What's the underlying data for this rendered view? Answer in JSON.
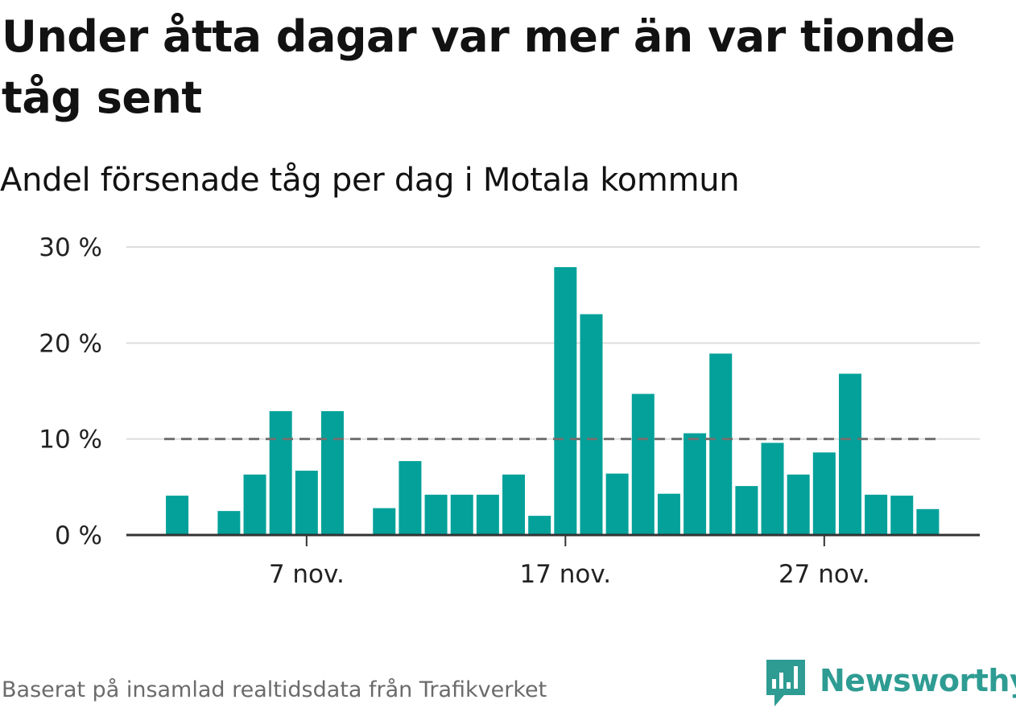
{
  "header": {
    "title": "Under åtta dagar var mer än var tionde tåg sent",
    "subtitle": "Andel försenade tåg per dag i Motala kommun"
  },
  "footer": {
    "source": "Baserat på insamlad realtidsdata från Trafikverket",
    "logo_text": "Newsworthy"
  },
  "colors": {
    "bar": "#03a19a",
    "reference_line": "#707070",
    "grid": "#dddddd",
    "axis": "#333333",
    "logo": "#2e9c93"
  },
  "chart_data": {
    "type": "bar",
    "x": [
      "2 nov.",
      "3 nov.",
      "4 nov.",
      "5 nov.",
      "6 nov.",
      "7 nov.",
      "8 nov.",
      "9 nov.",
      "10 nov.",
      "11 nov.",
      "12 nov.",
      "13 nov.",
      "14 nov.",
      "15 nov.",
      "16 nov.",
      "17 nov.",
      "18 nov.",
      "19 nov.",
      "20 nov.",
      "21 nov.",
      "22 nov.",
      "23 nov.",
      "24 nov.",
      "25 nov.",
      "26 nov.",
      "27 nov.",
      "28 nov.",
      "29 nov.",
      "30 nov.",
      "1 dec."
    ],
    "values": [
      4.1,
      null,
      2.5,
      6.3,
      12.9,
      6.7,
      12.9,
      null,
      2.8,
      7.7,
      4.2,
      4.2,
      4.2,
      6.3,
      2.0,
      27.9,
      23.0,
      6.4,
      14.7,
      4.3,
      10.6,
      18.9,
      5.1,
      9.6,
      6.3,
      8.6,
      16.8,
      4.2,
      4.1,
      2.7
    ],
    "reference_line": 10,
    "ylim": [
      0,
      30
    ],
    "yticks": [
      0,
      10,
      20,
      30
    ],
    "ytick_labels": [
      "0 %",
      "10 %",
      "20 %",
      "30 %"
    ],
    "xticks": [
      {
        "x": "7 nov.",
        "label": "7 nov."
      },
      {
        "x": "17 nov.",
        "label": "17 nov."
      },
      {
        "x": "27 nov.",
        "label": "27 nov."
      }
    ],
    "grid": true,
    "legend": "none",
    "title": "Under åtta dagar var mer än var tionde tåg sent",
    "subtitle": "Andel försenade tåg per dag i Motala kommun",
    "xlabel": "",
    "ylabel": ""
  }
}
